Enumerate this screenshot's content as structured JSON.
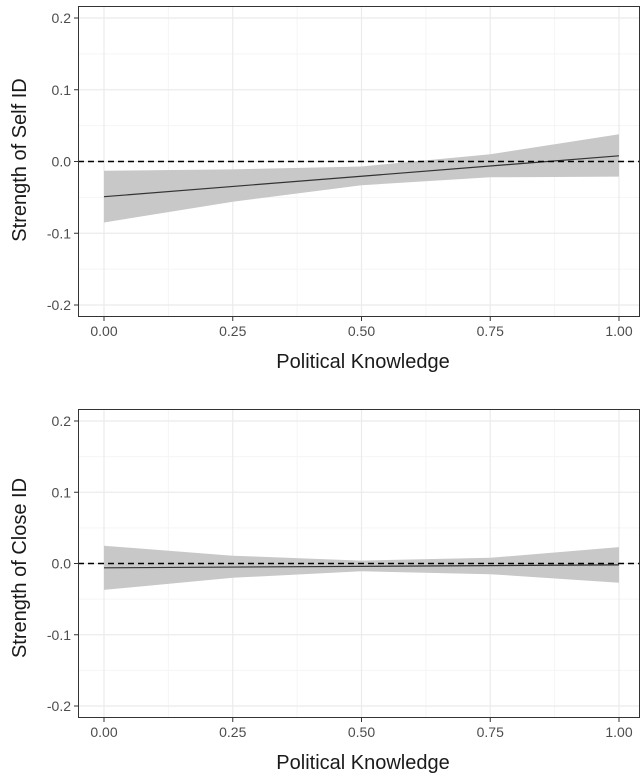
{
  "chart_data": [
    {
      "type": "line",
      "xlabel": "Political Knowledge",
      "ylabel": "Strength of Self ID",
      "xlim": [
        0.0,
        1.0
      ],
      "ylim": [
        -0.2,
        0.2
      ],
      "x_ticks": [
        "0.00",
        "0.25",
        "0.50",
        "0.75",
        "1.00"
      ],
      "y_ticks": [
        "-0.2",
        "-0.1",
        "0.0",
        "0.1",
        "0.2"
      ],
      "grid": true,
      "reference_line": {
        "y": 0.0,
        "style": "dashed"
      },
      "series": [
        {
          "type": "line",
          "x": [
            0.0,
            1.0
          ],
          "y": [
            -0.049,
            0.008
          ]
        },
        {
          "type": "band",
          "x": [
            0.0,
            0.25,
            0.5,
            0.75,
            1.0
          ],
          "lower": [
            -0.085,
            -0.056,
            -0.033,
            -0.022,
            -0.021
          ],
          "upper": [
            -0.013,
            -0.011,
            -0.007,
            0.01,
            0.038
          ]
        }
      ]
    },
    {
      "type": "line",
      "xlabel": "Political Knowledge",
      "ylabel": "Strength of Close ID",
      "xlim": [
        0.0,
        1.0
      ],
      "ylim": [
        -0.2,
        0.2
      ],
      "x_ticks": [
        "0.00",
        "0.25",
        "0.50",
        "0.75",
        "1.00"
      ],
      "y_ticks": [
        "-0.2",
        "-0.1",
        "0.0",
        "0.1",
        "0.2"
      ],
      "grid": true,
      "reference_line": {
        "y": 0.0,
        "style": "dashed"
      },
      "series": [
        {
          "type": "line",
          "x": [
            0.0,
            1.0
          ],
          "y": [
            -0.006,
            -0.002
          ]
        },
        {
          "type": "band",
          "x": [
            0.0,
            0.25,
            0.5,
            0.75,
            1.0
          ],
          "lower": [
            -0.037,
            -0.02,
            -0.011,
            -0.015,
            -0.027
          ],
          "upper": [
            0.025,
            0.011,
            0.004,
            0.008,
            0.023
          ]
        }
      ]
    }
  ],
  "colors": {
    "panel_border": "#333333",
    "grid_major": "#ebebeb",
    "grid_minor": "#f5f5f5",
    "band_fill": "#c8c8c8",
    "line": "#333333",
    "reference_line": "#000000"
  }
}
